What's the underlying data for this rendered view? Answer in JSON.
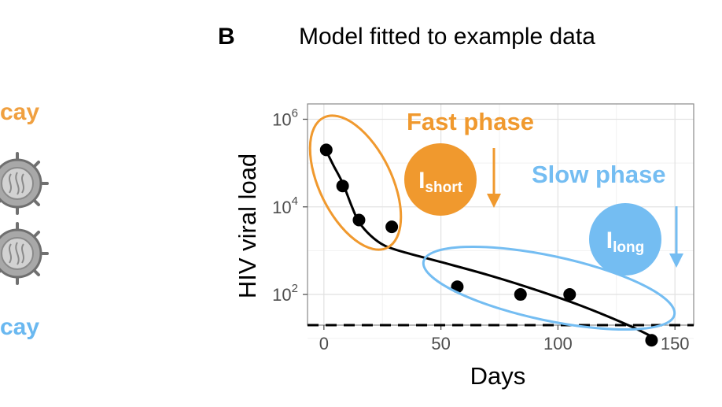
{
  "left_panel": {
    "top_label": "cay",
    "bottom_label": "cay",
    "top_color": "#f0a040",
    "bottom_color": "#6ab8f0"
  },
  "panel_letter": "B",
  "title": "Model fitted to example data",
  "annotations": {
    "fast_phase": "Fast phase",
    "slow_phase": "Slow phase",
    "short_badge": {
      "main": "I",
      "sub": "short"
    },
    "long_badge": {
      "main": "I",
      "sub": "long"
    },
    "fast_color": "#f0992e",
    "slow_color": "#74bdf2"
  },
  "chart_data": {
    "type": "scatter",
    "title": "",
    "xlabel": "Days",
    "ylabel": "HIV viral load",
    "xlim": [
      -7,
      158
    ],
    "ylim_log10": [
      1.3,
      6.35
    ],
    "x_ticks": [
      "0",
      "50",
      "100",
      "150"
    ],
    "y_ticks": [
      {
        "base": "10",
        "exp": "2"
      },
      {
        "base": "10",
        "exp": "4"
      },
      {
        "base": "10",
        "exp": "6"
      }
    ],
    "y_scale": "log",
    "grid": true,
    "points": [
      {
        "x": 1,
        "y": 200000
      },
      {
        "x": 8,
        "y": 30000
      },
      {
        "x": 15,
        "y": 5000
      },
      {
        "x": 29,
        "y": 3500
      },
      {
        "x": 57,
        "y": 150
      },
      {
        "x": 84,
        "y": 100
      },
      {
        "x": 105,
        "y": 100
      },
      {
        "x": 140,
        "y": 9
      }
    ],
    "fit_curve": [
      {
        "x": 1,
        "y": 190000
      },
      {
        "x": 4,
        "y": 90000
      },
      {
        "x": 8,
        "y": 35000
      },
      {
        "x": 12,
        "y": 10000
      },
      {
        "x": 15,
        "y": 4500
      },
      {
        "x": 20,
        "y": 2200
      },
      {
        "x": 26,
        "y": 1300
      },
      {
        "x": 35,
        "y": 900
      },
      {
        "x": 50,
        "y": 550
      },
      {
        "x": 70,
        "y": 280
      },
      {
        "x": 90,
        "y": 130
      },
      {
        "x": 110,
        "y": 55
      },
      {
        "x": 130,
        "y": 20
      },
      {
        "x": 140,
        "y": 11
      }
    ],
    "threshold": 20
  }
}
